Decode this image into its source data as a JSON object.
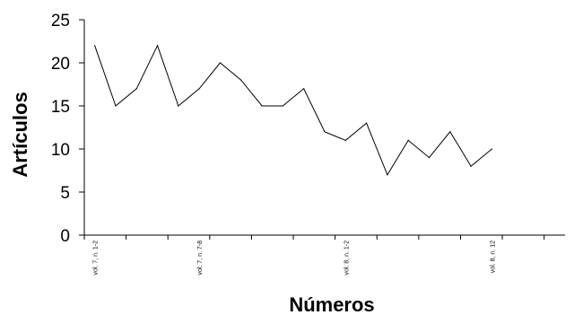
{
  "chart_data": {
    "type": "line",
    "title": "",
    "xlabel": "Números",
    "ylabel": "Artículos",
    "ylim": [
      0,
      25
    ],
    "yticks": [
      0,
      5,
      10,
      15,
      20,
      25
    ],
    "grid": false,
    "legend": "none",
    "line_color": "#000000",
    "x_tick_labels": [
      {
        "index": 0,
        "label": "vol. 7, n. 1-2"
      },
      {
        "index": 5,
        "label": "vol. 7, n. 7-8"
      },
      {
        "index": 12,
        "label": "vol. 8, n. 1-2"
      },
      {
        "index": 19,
        "label": "vol. 8, n. 12"
      }
    ],
    "x_count": 23,
    "series": [
      {
        "values": [
          22,
          15,
          17,
          22,
          15,
          17,
          20,
          18,
          15,
          15,
          17,
          12,
          11,
          13,
          7,
          11,
          9,
          12,
          8,
          10
        ]
      }
    ]
  }
}
